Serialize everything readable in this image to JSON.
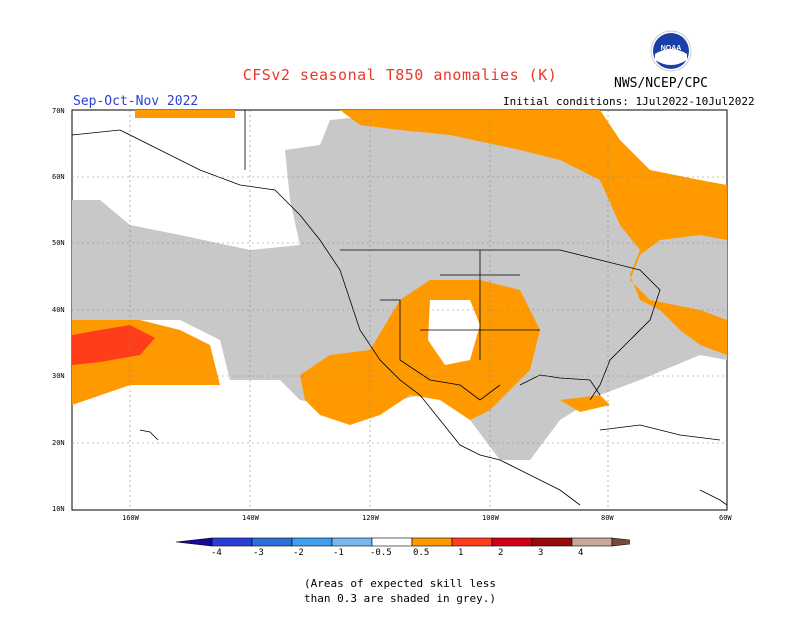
{
  "title": "CFSv2 seasonal T850 anomalies (K)",
  "season": "Sep-Oct-Nov 2022",
  "agency": "NWS/NCEP/CPC",
  "logo_text": "NOAA",
  "initial_conditions": "Initial conditions: 1Jul2022-10Jul2022",
  "lat_labels": [
    "70N",
    "60N",
    "50N",
    "40N",
    "30N",
    "20N",
    "10N"
  ],
  "lon_labels": [
    "160W",
    "140W",
    "120W",
    "100W",
    "80W",
    "60W"
  ],
  "colorbar": {
    "labels": [
      "-4",
      "-3",
      "-2",
      "-1",
      "-0.5",
      "0.5",
      "1",
      "2",
      "3",
      "4"
    ],
    "colors": [
      "#1a0a9a",
      "#2a3fd6",
      "#2a6fdb",
      "#3e9ef0",
      "#78b8f0",
      "#ffffff",
      "#ff9900",
      "#ff3d1a",
      "#d0001a",
      "#9a0a0a",
      "#c8a89a",
      "#7a4a3a"
    ]
  },
  "legend_colors": {
    "grey_low_skill": "#c8c8c8",
    "warm_0_5_1": "#ff9900",
    "warm_1_2": "#ff3d1a"
  },
  "note_line1": "(Areas of expected skill less",
  "note_line2": "than 0.3 are shaded in grey.)"
}
